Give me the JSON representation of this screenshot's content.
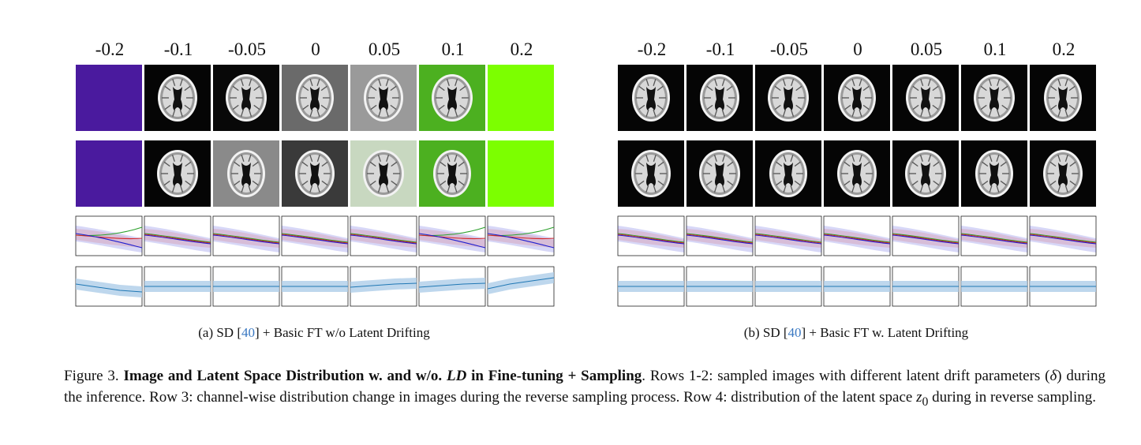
{
  "deltas": [
    "-0.2",
    "-0.1",
    "-0.05",
    "0",
    "0.05",
    "0.1",
    "0.2"
  ],
  "panel_a": {
    "caption_prefix": "(a) SD [",
    "caption_ref": "40",
    "caption_suffix": "] + Basic FT w/o Latent Drifting",
    "row1_backgrounds": [
      "#4a1a9e",
      "#050505",
      "#080808",
      "#6a6a6a",
      "#9a9a9a",
      "#4cb020",
      "#7cff00"
    ],
    "row2_backgrounds": [
      "#4a1a9e",
      "#050505",
      "#8a8a8a",
      "#3a3a3a",
      "#c8d8c0",
      "#4cb020",
      "#7cff00"
    ]
  },
  "panel_b": {
    "caption_prefix": "(b) SD [",
    "caption_ref": "40",
    "caption_suffix": "] + Basic FT w. Latent Drifting"
  },
  "figure_caption": {
    "label": "Figure 3.",
    "title": "Image and Latent Space Distribution w. and w/o.",
    "title_em": "LD",
    "title_end": "in Fine-tuning + Sampling",
    "text_1": ". Rows 1-2: sampled images with different latent drift parameters (",
    "delta_symbol": "δ",
    "text_2": ") during the inference. Row 3: channel-wise distribution change in images during the reverse sampling process. Row 4: distribution of the latent space ",
    "z_symbol": "z",
    "z_sub": "0",
    "text_3": " during in reverse sampling."
  },
  "colors": {
    "red_channel": "#d62728",
    "green_channel": "#2ca02c",
    "blue_channel": "#1f1fd0",
    "latent_line": "#1f77b4",
    "latent_band": "#aecde8",
    "ref_link": "#3a78c2"
  }
}
